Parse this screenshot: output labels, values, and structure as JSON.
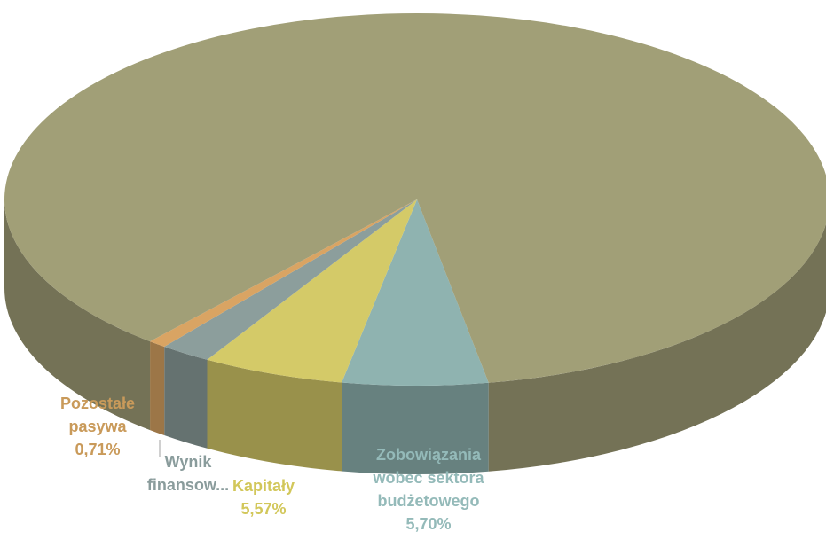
{
  "chart_data": {
    "type": "pie3d",
    "categories": [
      "Zobowiązania wobec sektora budżetowego",
      "Kapitały",
      "Wynik finansow...",
      "Pozostałe pasywa",
      null
    ],
    "values": [
      5.7,
      5.57,
      2.0,
      0.71,
      86.02
    ],
    "value_labels": [
      "5,70%",
      "5,57%",
      null,
      "0,71%",
      null
    ],
    "colors": [
      "#8fb3b0",
      "#d4ca68",
      "#8c9e9c",
      "#d9a463",
      "#a19f77"
    ],
    "label_colors": [
      "#94bab9",
      "#d2c75a",
      "#8a9c9c",
      "#c99a5a",
      null
    ]
  }
}
